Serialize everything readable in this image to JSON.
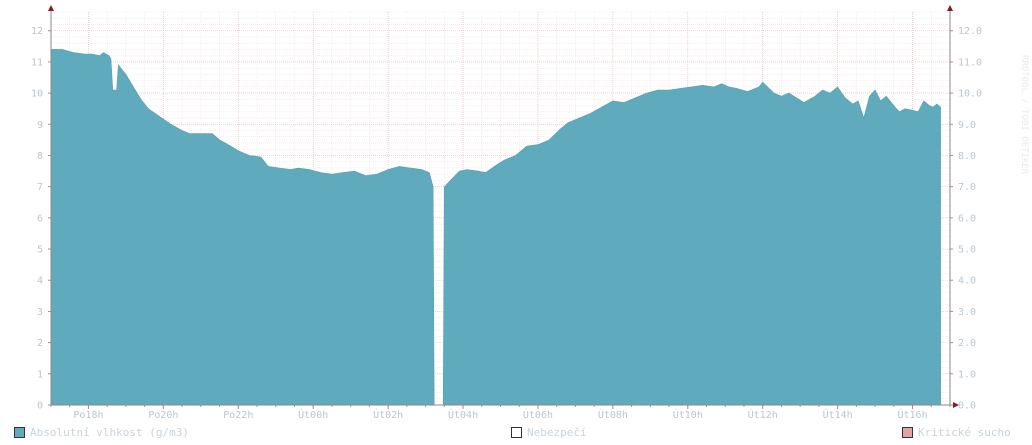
{
  "chart_data": {
    "type": "area",
    "title": "",
    "ylim": [
      0,
      12.6
    ],
    "y_ticks_left": [
      "0",
      "1",
      "2",
      "3",
      "4",
      "5",
      "6",
      "7",
      "8",
      "9",
      "10",
      "11",
      "12"
    ],
    "y_ticks_right": [
      "0.0",
      "1.0",
      "2.0",
      "3.0",
      "4.0",
      "5.0",
      "6.0",
      "7.0",
      "8.0",
      "9.0",
      "10.0",
      "11.0",
      "12.0"
    ],
    "x_range": [
      17.0,
      41.0
    ],
    "x_ticks": [
      {
        "label": "Po18h",
        "x": 18
      },
      {
        "label": "Po20h",
        "x": 20
      },
      {
        "label": "Po22h",
        "x": 22
      },
      {
        "label": "Út00h",
        "x": 24
      },
      {
        "label": "Út02h",
        "x": 26
      },
      {
        "label": "Út04h",
        "x": 28
      },
      {
        "label": "Út06h",
        "x": 30
      },
      {
        "label": "Út08h",
        "x": 32
      },
      {
        "label": "Út10h",
        "x": 34
      },
      {
        "label": "Út12h",
        "x": 36
      },
      {
        "label": "Út14h",
        "x": 38
      },
      {
        "label": "Út16h",
        "x": 40
      }
    ],
    "series": [
      {
        "name": "Absolutní vlhkost (g/m3)",
        "color": "#5fabbd",
        "points": [
          [
            17.0,
            11.4
          ],
          [
            17.3,
            11.4
          ],
          [
            17.6,
            11.3
          ],
          [
            17.9,
            11.25
          ],
          [
            18.1,
            11.25
          ],
          [
            18.3,
            11.2
          ],
          [
            18.4,
            11.3
          ],
          [
            18.55,
            11.2
          ],
          [
            18.6,
            11.1
          ],
          [
            18.65,
            10.1
          ],
          [
            18.75,
            10.1
          ],
          [
            18.8,
            10.9
          ],
          [
            19.0,
            10.6
          ],
          [
            19.2,
            10.2
          ],
          [
            19.4,
            9.8
          ],
          [
            19.6,
            9.5
          ],
          [
            19.9,
            9.25
          ],
          [
            20.2,
            9.0
          ],
          [
            20.5,
            8.8
          ],
          [
            20.7,
            8.7
          ],
          [
            21.0,
            8.7
          ],
          [
            21.3,
            8.7
          ],
          [
            21.5,
            8.5
          ],
          [
            21.8,
            8.3
          ],
          [
            22.0,
            8.15
          ],
          [
            22.3,
            8.0
          ],
          [
            22.6,
            7.95
          ],
          [
            22.8,
            7.65
          ],
          [
            23.1,
            7.6
          ],
          [
            23.4,
            7.55
          ],
          [
            23.6,
            7.6
          ],
          [
            23.9,
            7.55
          ],
          [
            24.2,
            7.45
          ],
          [
            24.5,
            7.4
          ],
          [
            24.8,
            7.45
          ],
          [
            25.1,
            7.5
          ],
          [
            25.4,
            7.35
          ],
          [
            25.7,
            7.4
          ],
          [
            26.0,
            7.55
          ],
          [
            26.3,
            7.65
          ],
          [
            26.6,
            7.6
          ],
          [
            26.9,
            7.55
          ],
          [
            27.1,
            7.45
          ],
          [
            27.2,
            7.0
          ],
          [
            27.23,
            0.0
          ],
          [
            27.47,
            0.0
          ],
          [
            27.5,
            7.0
          ],
          [
            27.7,
            7.25
          ],
          [
            27.9,
            7.5
          ],
          [
            28.1,
            7.55
          ],
          [
            28.4,
            7.5
          ],
          [
            28.6,
            7.45
          ],
          [
            28.9,
            7.7
          ],
          [
            29.1,
            7.85
          ],
          [
            29.4,
            8.0
          ],
          [
            29.7,
            8.3
          ],
          [
            30.0,
            8.35
          ],
          [
            30.3,
            8.5
          ],
          [
            30.6,
            8.85
          ],
          [
            30.8,
            9.05
          ],
          [
            31.1,
            9.2
          ],
          [
            31.4,
            9.35
          ],
          [
            31.7,
            9.55
          ],
          [
            32.0,
            9.75
          ],
          [
            32.3,
            9.7
          ],
          [
            32.6,
            9.85
          ],
          [
            32.9,
            10.0
          ],
          [
            33.2,
            10.1
          ],
          [
            33.5,
            10.1
          ],
          [
            33.8,
            10.15
          ],
          [
            34.1,
            10.2
          ],
          [
            34.4,
            10.25
          ],
          [
            34.7,
            10.2
          ],
          [
            34.9,
            10.3
          ],
          [
            35.1,
            10.2
          ],
          [
            35.3,
            10.15
          ],
          [
            35.6,
            10.05
          ],
          [
            35.9,
            10.2
          ],
          [
            36.0,
            10.35
          ],
          [
            36.3,
            10.0
          ],
          [
            36.5,
            9.9
          ],
          [
            36.7,
            10.0
          ],
          [
            36.9,
            9.85
          ],
          [
            37.1,
            9.7
          ],
          [
            37.4,
            9.9
          ],
          [
            37.6,
            10.1
          ],
          [
            37.8,
            10.0
          ],
          [
            38.0,
            10.2
          ],
          [
            38.2,
            9.85
          ],
          [
            38.4,
            9.65
          ],
          [
            38.55,
            9.75
          ],
          [
            38.7,
            9.2
          ],
          [
            38.85,
            9.9
          ],
          [
            39.0,
            10.1
          ],
          [
            39.15,
            9.75
          ],
          [
            39.3,
            9.9
          ],
          [
            39.5,
            9.6
          ],
          [
            39.65,
            9.4
          ],
          [
            39.8,
            9.5
          ],
          [
            40.0,
            9.45
          ],
          [
            40.15,
            9.4
          ],
          [
            40.3,
            9.75
          ],
          [
            40.45,
            9.6
          ],
          [
            40.55,
            9.55
          ],
          [
            40.65,
            9.65
          ],
          [
            40.75,
            9.55
          ]
        ]
      }
    ],
    "grid": true,
    "legend_position": "bottom"
  },
  "legend": [
    {
      "label": "Absolutní vlhkost (g/m3)",
      "color": "#5fabbd"
    },
    {
      "label": "Nebezpečí",
      "color": "#ffffff"
    },
    {
      "label": "Kritické sucho",
      "color": "#e4a3a3"
    }
  ],
  "side_label": "RRDTOOL / TOBI OETIKER"
}
